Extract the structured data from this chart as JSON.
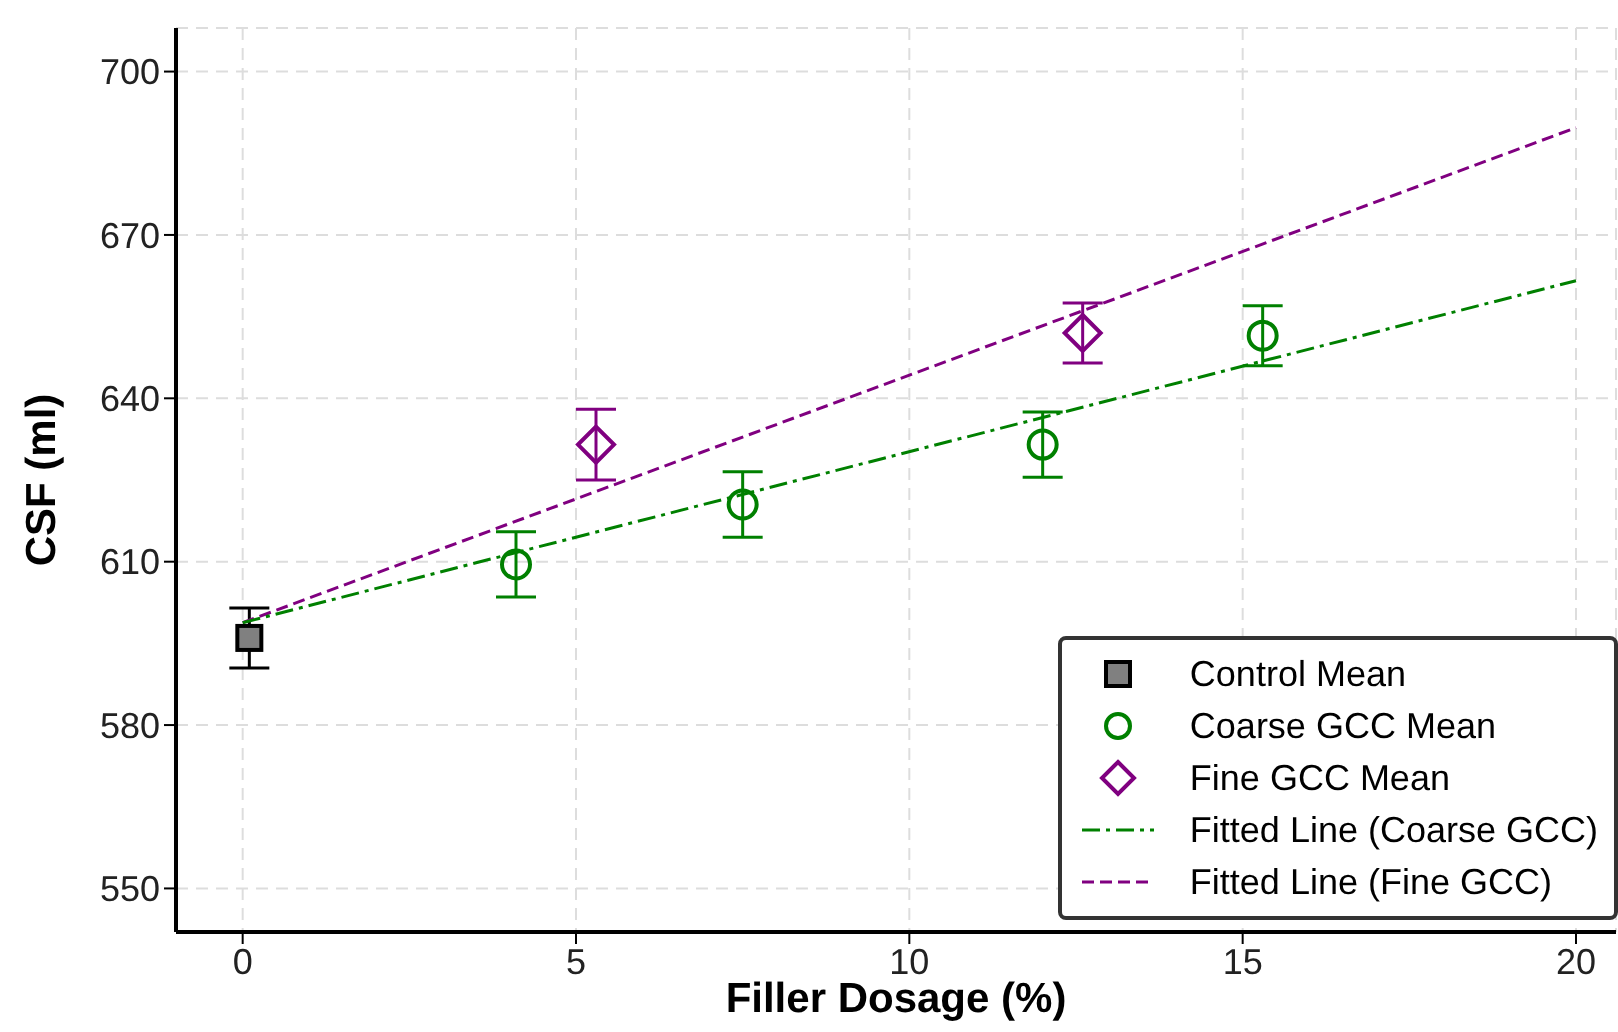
{
  "chart_data": {
    "type": "scatter",
    "xlabel": "Filler Dosage (%)",
    "ylabel": "CSF (ml)",
    "xlim": [
      -1,
      20.6
    ],
    "xticks": [
      0,
      5,
      10,
      15,
      20
    ],
    "ylim": [
      542,
      708
    ],
    "yticks": [
      550,
      580,
      610,
      640,
      670,
      700
    ],
    "grid": true,
    "legend": "bottom right",
    "series": [
      {
        "name": "Control Mean",
        "marker": "square",
        "color": "#808080",
        "x": [
          0.1
        ],
        "values": [
          596
        ],
        "errors": [
          5.5
        ]
      },
      {
        "name": "Coarse GCC Mean",
        "marker": "circle",
        "color": "#008000",
        "x": [
          4.1,
          7.5,
          12,
          15.3
        ],
        "values": [
          609.5,
          620.5,
          631.5,
          651.5
        ],
        "errors": [
          6,
          6,
          6,
          5.5
        ]
      },
      {
        "name": "Fine GCC Mean",
        "marker": "diamond",
        "color": "#800080",
        "x": [
          5.3,
          12.6
        ],
        "values": [
          631.5,
          652
        ],
        "errors": [
          6.5,
          5.5
        ]
      },
      {
        "name": "Fitted Line (Coarse GCC)",
        "type": "line",
        "line_style": "dashdot",
        "color": "#008000",
        "x": [
          0,
          20
        ],
        "values": [
          598.8,
          661.6
        ]
      },
      {
        "name": "Fitted Line (Fine GCC)",
        "type": "line",
        "line_style": "dashed",
        "color": "#800080",
        "x": [
          0,
          20
        ],
        "values": [
          598.8,
          689.7
        ]
      }
    ]
  }
}
